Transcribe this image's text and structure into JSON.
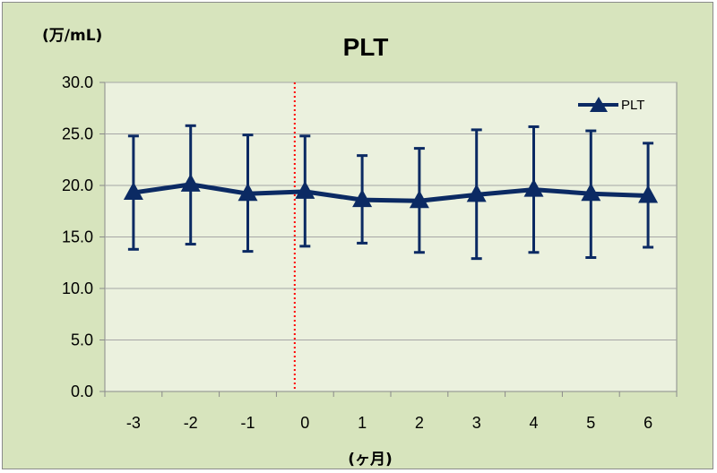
{
  "chart_data": {
    "type": "line",
    "title": "PLT",
    "ylabel": "(万/mL)",
    "xlabel": "(ヶ月)",
    "categories": [
      "-3",
      "-2",
      "-1",
      "0",
      "1",
      "2",
      "3",
      "4",
      "5",
      "6"
    ],
    "ylim": [
      0,
      30
    ],
    "yticks": [
      "0.0",
      "5.0",
      "10.0",
      "15.0",
      "20.0",
      "25.0",
      "30.0"
    ],
    "series": [
      {
        "name": "PLT",
        "values": [
          19.3,
          20.1,
          19.2,
          19.4,
          18.6,
          18.5,
          19.1,
          19.6,
          19.2,
          19.0
        ],
        "error_low": [
          13.8,
          14.3,
          13.6,
          14.1,
          14.4,
          13.5,
          12.9,
          13.5,
          13.0,
          14.0
        ],
        "error_high": [
          24.8,
          25.8,
          24.9,
          24.8,
          22.9,
          23.6,
          25.4,
          25.7,
          25.3,
          24.1
        ]
      }
    ],
    "reference_line": {
      "x_position": "between -1 and 0",
      "style": "dotted",
      "color": "#ff0000"
    },
    "grid": true,
    "legend": "top-right",
    "colors": {
      "series": "#0b2a63",
      "plot_background": "#ebf1de",
      "chart_background": "#d7e4bd",
      "gridline": "#a6a6a6"
    }
  }
}
